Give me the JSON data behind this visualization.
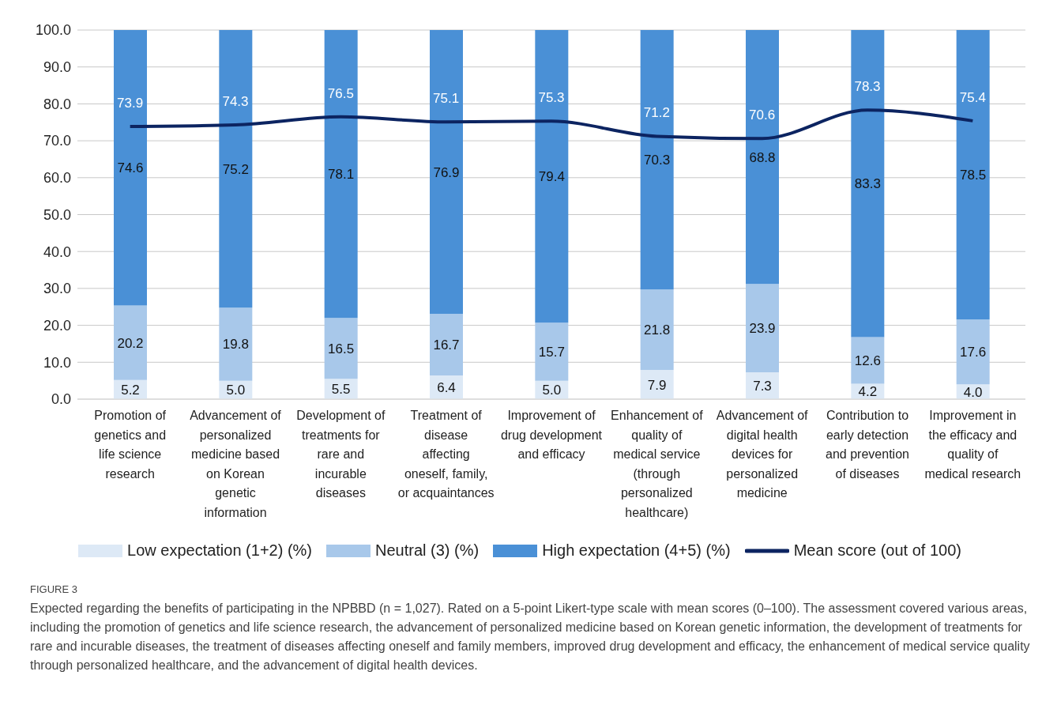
{
  "chart_data": {
    "type": "bar",
    "stacked": true,
    "grid": "y",
    "legend": "bottom",
    "categories": [
      "Promotion of genetics and life science research",
      "Advancement of personalized medicine based on Korean genetic information",
      "Development of treatments for rare and incurable diseases",
      "Treatment of disease affecting oneself, family, or acquaintances",
      "Improvement of drug development and efficacy",
      "Enhancement of quality of medical service (through personalized healthcare)",
      "Advancement of digital health devices for personalized medicine",
      "Contribution to early detection and prevention of diseases",
      "Improvement in the efficacy and quality of medical research"
    ],
    "series": [
      {
        "name": "Low expectation (1+2) (%)",
        "color": "#dde9f6",
        "values": [
          5.2,
          5.0,
          5.5,
          6.4,
          5.0,
          7.9,
          7.3,
          4.2,
          4.0
        ],
        "value_labels": [
          "5.2",
          "5.0",
          "5.5",
          "6.4",
          "5.0",
          "7.9",
          "7.3",
          "4.2",
          "4.0"
        ]
      },
      {
        "name": "Neutral (3) (%)",
        "color": "#a8c8ea",
        "values": [
          20.2,
          19.8,
          16.5,
          16.7,
          15.7,
          21.8,
          23.9,
          12.6,
          17.6
        ],
        "value_labels": [
          "20.2",
          "19.8",
          "16.5",
          "16.7",
          "15.7",
          "21.8",
          "23.9",
          "12.6",
          "17.6"
        ]
      },
      {
        "name": "High expectation (4+5) (%)",
        "color": "#4a90d6",
        "values": [
          74.6,
          75.2,
          78.1,
          76.9,
          79.4,
          70.3,
          68.8,
          83.3,
          78.5
        ],
        "value_labels": [
          "74.6",
          "75.2",
          "78.1",
          "76.9",
          "79.4",
          "70.3",
          "68.8",
          "83.3",
          "78.5"
        ]
      },
      {
        "name": "Mean score (out of 100)",
        "type": "line",
        "color": "#0c2461",
        "values": [
          73.9,
          74.3,
          76.5,
          75.1,
          75.3,
          71.2,
          70.6,
          78.3,
          75.4
        ],
        "value_labels": [
          "73.9",
          "74.3",
          "76.5",
          "75.1",
          "75.3",
          "71.2",
          "70.6",
          "78.3",
          "75.4"
        ]
      }
    ],
    "ylim": [
      0,
      100
    ],
    "yticks": [
      {
        "value": 0,
        "label": "0.0"
      },
      {
        "value": 10,
        "label": "10.0"
      },
      {
        "value": 20,
        "label": "20.0"
      },
      {
        "value": 30,
        "label": "30.0"
      },
      {
        "value": 40,
        "label": "40.0"
      },
      {
        "value": 50,
        "label": "50.0"
      },
      {
        "value": 60,
        "label": "60.0"
      },
      {
        "value": 70,
        "label": "70.0"
      },
      {
        "value": 80,
        "label": "80.0"
      },
      {
        "value": 90,
        "label": "90.0"
      },
      {
        "value": 100,
        "label": "100.0"
      }
    ],
    "annotations": [
      "FIGURE 3",
      "Expected regarding the benefits of participating in the NPBBD (n = 1,027). Rated on a 5-point Likert-type scale with mean scores (0–100). The assessment covered various areas, including the promotion of genetics and life science research, the advancement of personalized medicine based on Korean genetic information, the development of treatments for rare and incurable diseases, the treatment of diseases affecting oneself and family members, improved drug development and efficacy, the enhancement of medical service quality through personalized healthcare, and the advancement of digital health devices."
    ]
  }
}
